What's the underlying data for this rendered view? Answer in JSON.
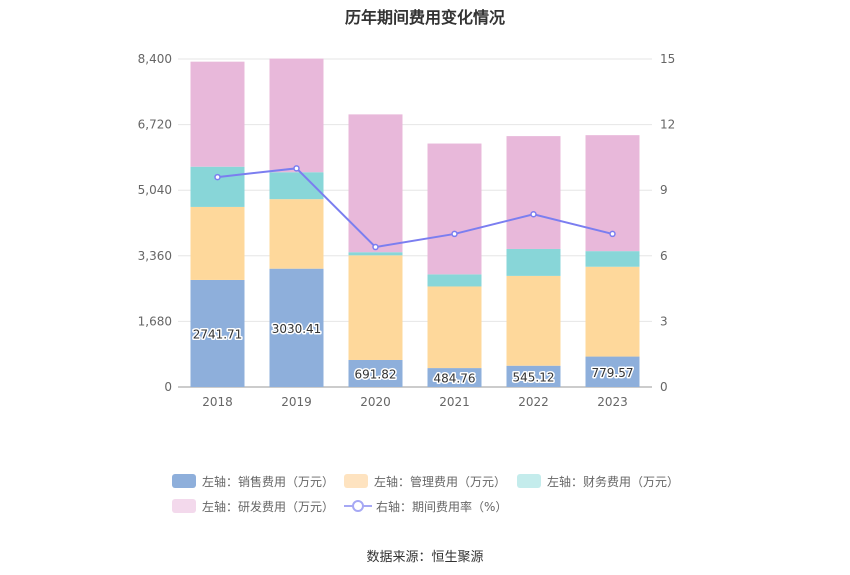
{
  "chart_data": {
    "type": "bar",
    "stacked": true,
    "title": "历年期间费用变化情况",
    "categories": [
      "2018",
      "2019",
      "2020",
      "2021",
      "2022",
      "2023"
    ],
    "left_axis": {
      "ylim": [
        0,
        8400
      ],
      "ticks": [
        "0",
        "1,680",
        "3,360",
        "5,040",
        "6,720",
        "8,400"
      ]
    },
    "right_axis": {
      "ylim": [
        0,
        15
      ],
      "ticks": [
        "0",
        "3",
        "6",
        "9",
        "12",
        "15"
      ]
    },
    "grid": true,
    "legend_position": "bottom",
    "series": [
      {
        "name": "左轴：销售费用（万元）",
        "axis": "left",
        "type": "bar",
        "color": "#8eafdb",
        "values": [
          2741.71,
          3030.41,
          691.82,
          484.76,
          545.12,
          779.57
        ],
        "labels": [
          "2741.71",
          "3030.41",
          "691.82",
          "484.76",
          "545.12",
          "779.57"
        ]
      },
      {
        "name": "左轴：管理费用（万元）",
        "axis": "left",
        "type": "bar",
        "color": "#fed89b",
        "values": [
          1870,
          1780,
          2680,
          2090,
          2300,
          2300
        ]
      },
      {
        "name": "左轴：财务费用（万元）",
        "axis": "left",
        "type": "bar",
        "color": "#88d6d8",
        "values": [
          1030,
          690,
          80,
          310,
          690,
          400
        ]
      },
      {
        "name": "左轴：研发费用（万元）",
        "axis": "left",
        "type": "bar",
        "color": "#e8b8da",
        "values": [
          2690,
          2910,
          3530,
          3350,
          2890,
          2970
        ]
      },
      {
        "name": "右轴：期间费用率（%）",
        "axis": "right",
        "type": "line",
        "color": "#7b7ef0",
        "values": [
          9.6,
          10.0,
          6.4,
          7.0,
          7.9,
          7.0
        ]
      }
    ],
    "legend_swatches": [
      "#8eafdb",
      "#fee3c0",
      "#c4ecec",
      "#f3d9ec"
    ]
  },
  "source": "数据来源：恒生聚源"
}
